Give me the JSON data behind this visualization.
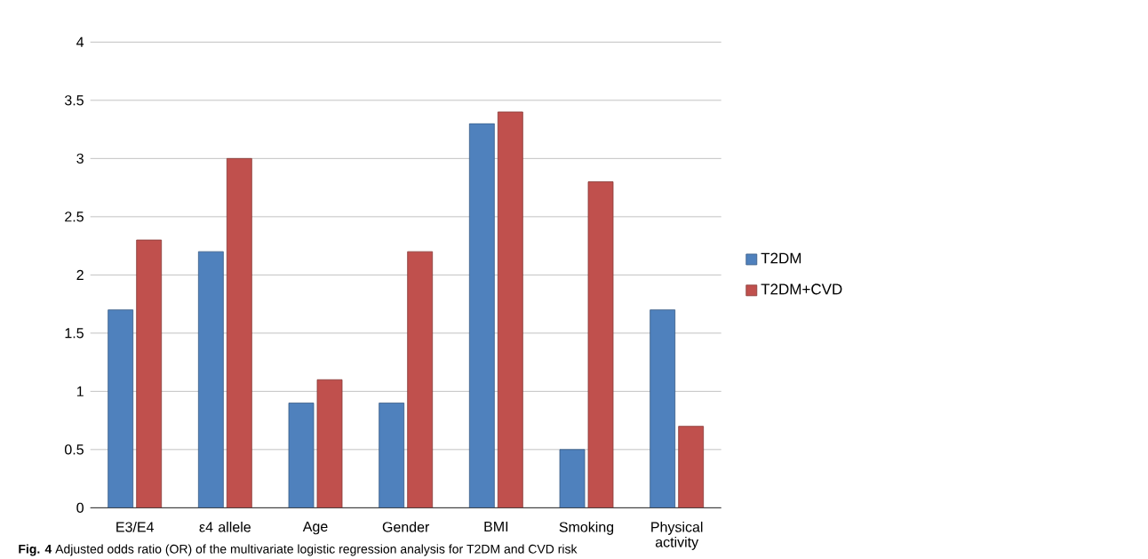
{
  "chart_data": {
    "type": "bar",
    "categories": [
      "E3/E4",
      "ε4 allele",
      "Age",
      "Gender",
      "BMI",
      "Smoking",
      "Physical activity"
    ],
    "series": [
      {
        "name": "T2DM",
        "color": "#4f81bd",
        "values": [
          1.7,
          2.2,
          0.9,
          0.9,
          3.3,
          0.5,
          1.7
        ]
      },
      {
        "name": "T2DM+CVD",
        "color": "#c0504d",
        "values": [
          2.3,
          3.0,
          1.1,
          2.2,
          3.4,
          2.8,
          0.7
        ]
      }
    ],
    "ylim": [
      0,
      4
    ],
    "yticks": [
      0,
      0.5,
      1,
      1.5,
      2,
      2.5,
      3,
      3.5,
      4
    ],
    "grid": "y",
    "legend": "right",
    "annotations": [
      "**Fig. 4** Adjusted odds ratio (OR) of the multivariate logistic regression analysis for T2DM and CVD risk"
    ]
  }
}
